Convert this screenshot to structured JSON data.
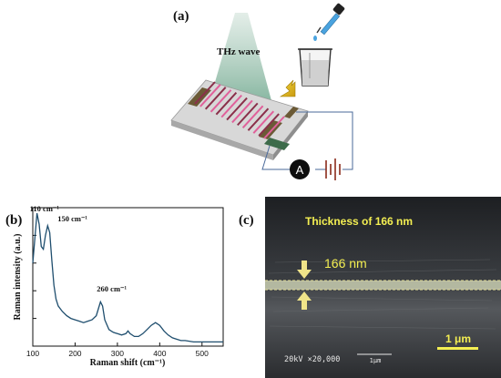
{
  "figure": {
    "panels": [
      {
        "label": "(a)",
        "thz_label": "THz wave",
        "ammeter_label": "A"
      },
      {
        "label": "(b)"
      },
      {
        "label": "(c)",
        "thickness_caption": "Thickness of 166 nm",
        "thickness_value": "166 nm",
        "sem_info": "20kV  ×20,000",
        "sem_scale_small": "1μm",
        "scale_bar_label": "1 μm"
      }
    ]
  },
  "chart_data": {
    "type": "line",
    "title": "",
    "xlabel": "Raman shift (cm⁻¹)",
    "ylabel": "Raman intensity (a.u.)",
    "xlim": [
      100,
      550
    ],
    "ylim": [
      0,
      1.0
    ],
    "x_ticks": [
      100,
      200,
      300,
      400,
      500
    ],
    "grid": false,
    "series": [
      {
        "color": "#1f4e6e",
        "x": [
          100,
          105,
          110,
          115,
          120,
          125,
          130,
          135,
          140,
          145,
          150,
          155,
          160,
          165,
          170,
          180,
          190,
          200,
          210,
          220,
          230,
          240,
          250,
          255,
          260,
          265,
          270,
          280,
          290,
          300,
          310,
          320,
          325,
          330,
          340,
          350,
          360,
          370,
          380,
          390,
          400,
          410,
          420,
          430,
          440,
          450,
          460,
          480,
          500,
          520,
          550
        ],
        "y": [
          0.6,
          0.78,
          0.96,
          0.88,
          0.72,
          0.7,
          0.8,
          0.87,
          0.82,
          0.62,
          0.44,
          0.34,
          0.29,
          0.27,
          0.25,
          0.22,
          0.2,
          0.19,
          0.18,
          0.17,
          0.18,
          0.19,
          0.22,
          0.27,
          0.32,
          0.29,
          0.19,
          0.12,
          0.1,
          0.09,
          0.08,
          0.09,
          0.11,
          0.09,
          0.07,
          0.07,
          0.09,
          0.12,
          0.15,
          0.17,
          0.15,
          0.11,
          0.08,
          0.06,
          0.05,
          0.04,
          0.04,
          0.03,
          0.03,
          0.03,
          0.03
        ]
      }
    ],
    "annotations": [
      {
        "text": "110 cm⁻¹",
        "x": 110,
        "y": 0.96
      },
      {
        "text": "150 cm⁻¹",
        "x": 150,
        "y": 0.88
      },
      {
        "text": "260 cm⁻¹",
        "x": 260,
        "y": 0.33
      }
    ]
  }
}
